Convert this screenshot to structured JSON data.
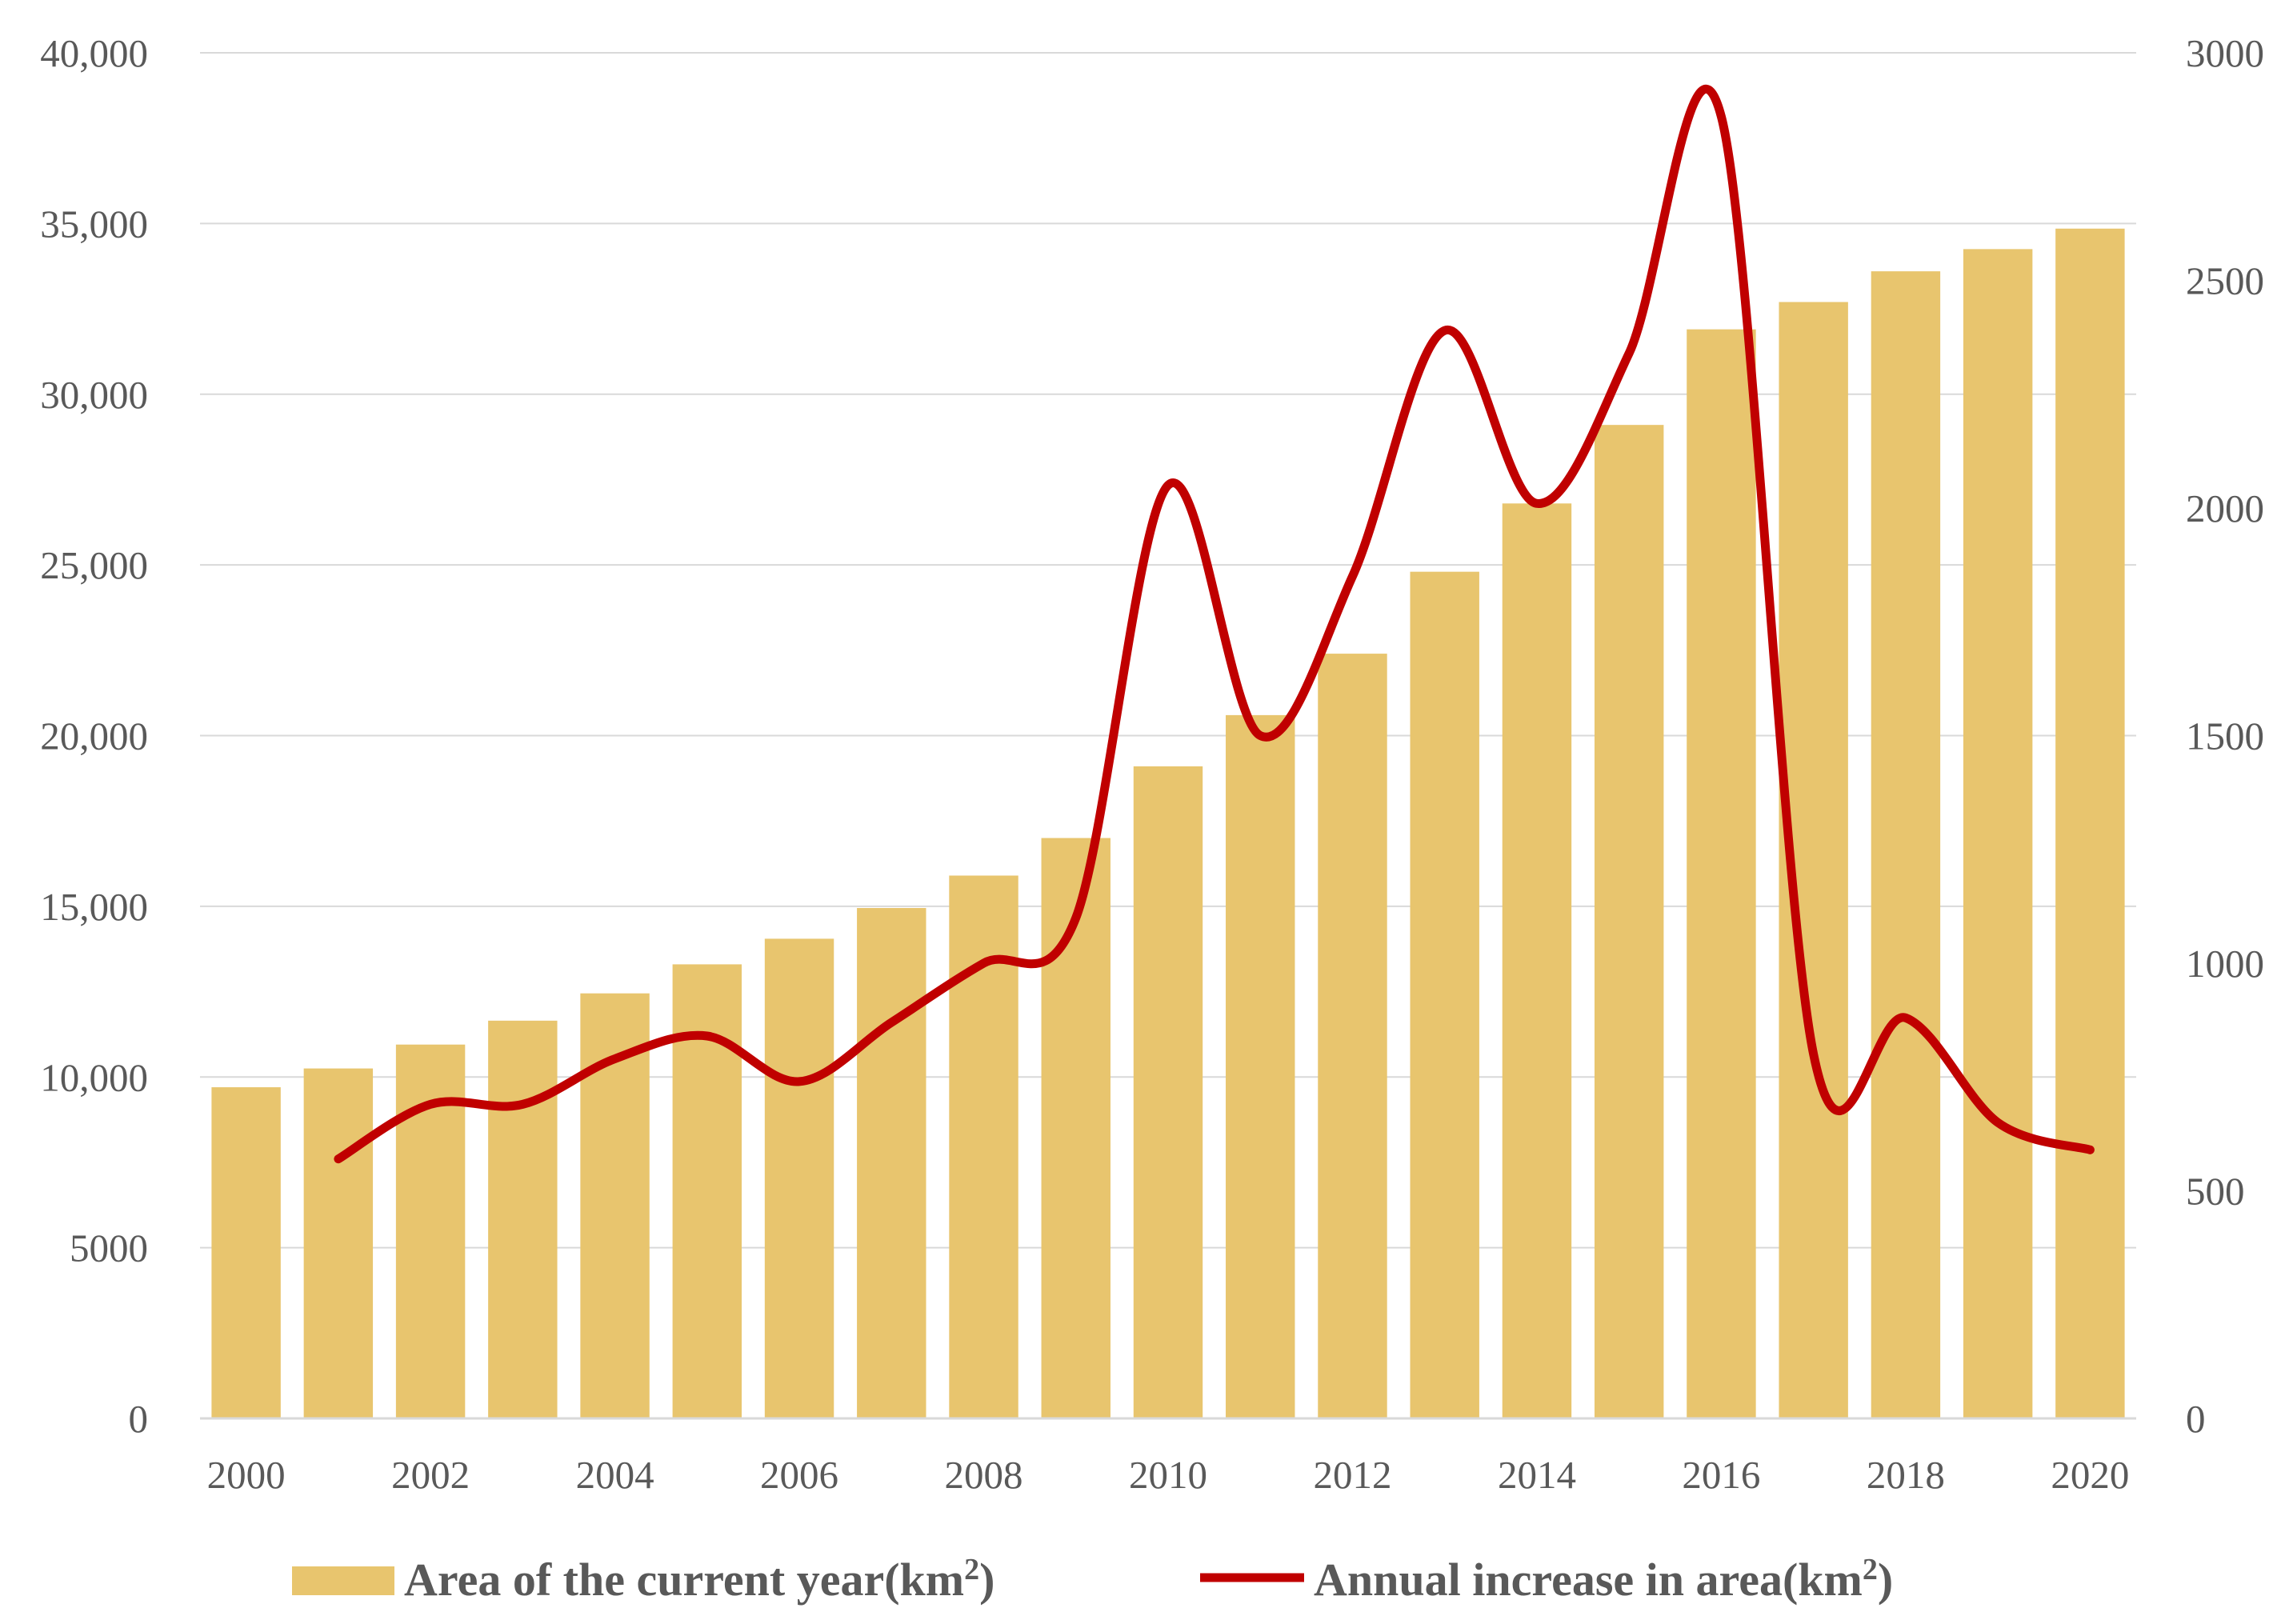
{
  "chart_data": {
    "type": "bar",
    "categories": [
      "2000",
      "2001",
      "2002",
      "2003",
      "2004",
      "2005",
      "2006",
      "2007",
      "2008",
      "2009",
      "2010",
      "2011",
      "2012",
      "2013",
      "2014",
      "2015",
      "2016",
      "2017",
      "2018",
      "2019",
      "2020"
    ],
    "x_tick_labels": [
      "2000",
      "2002",
      "2004",
      "2006",
      "2008",
      "2010",
      "2012",
      "2014",
      "2016",
      "2018",
      "2020"
    ],
    "series": [
      {
        "name": "Area of the current year(km²)",
        "legend_text": "Area of the current year(km",
        "type": "bar",
        "axis": "left",
        "color": "#E8C56E",
        "values": [
          9700,
          10250,
          10950,
          11650,
          12450,
          13300,
          14050,
          14950,
          15900,
          17000,
          19100,
          20600,
          22400,
          24800,
          26800,
          29100,
          31900,
          32700,
          33600,
          34250,
          34850
        ]
      },
      {
        "name": "Annual increase in area(km²)",
        "legend_text": "Annual increase in area(km",
        "type": "line",
        "axis": "right",
        "color": "#C00000",
        "x": [
          "2001",
          "2002",
          "2003",
          "2004",
          "2005",
          "2006",
          "2007",
          "2008",
          "2009",
          "2010",
          "2011",
          "2012",
          "2013",
          "2014",
          "2015",
          "2016",
          "2017",
          "2018",
          "2019",
          "2020"
        ],
        "values": [
          570,
          690,
          690,
          790,
          840,
          740,
          870,
          1000,
          1100,
          2050,
          1500,
          1850,
          2390,
          2010,
          2340,
          2860,
          800,
          880,
          650,
          590
        ]
      }
    ],
    "y_left": {
      "range": [
        0,
        40000
      ],
      "ticks": [
        0,
        5000,
        10000,
        15000,
        20000,
        25000,
        30000,
        35000,
        40000
      ],
      "tick_labels": [
        "0",
        "5000",
        "10,000",
        "15,000",
        "20,000",
        "25,000",
        "30,000",
        "35,000",
        "40,000"
      ]
    },
    "y_right": {
      "range": [
        0,
        3000
      ],
      "ticks": [
        0,
        500,
        1000,
        1500,
        2000,
        2500,
        3000
      ],
      "tick_labels": [
        "0",
        "500",
        "1000",
        "1500",
        "2000",
        "2500",
        "3000"
      ]
    },
    "legend_superscript": "2",
    "legend_close": ")",
    "grid": true,
    "legend_position": "bottom"
  }
}
